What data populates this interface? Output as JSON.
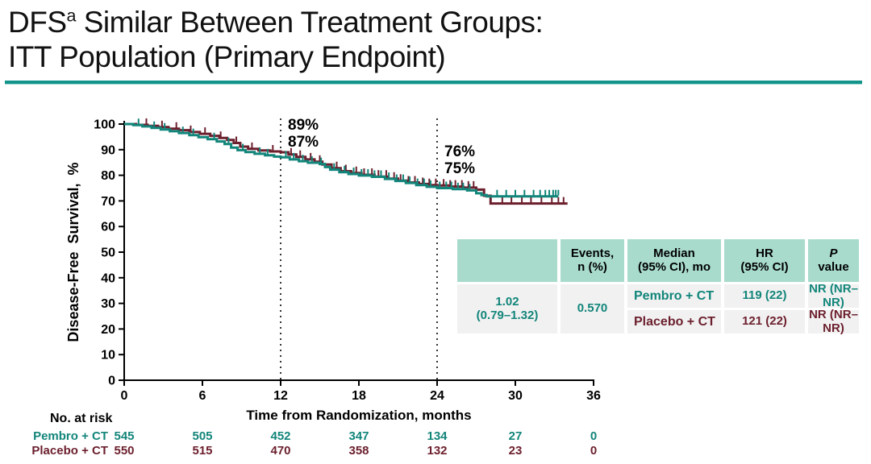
{
  "title": {
    "line1_prefix": "DFS",
    "line1_sup": "a",
    "line1_rest": " Similar Between Treatment Groups:",
    "line2": "ITT Population (Primary Endpoint)"
  },
  "colors": {
    "teal": "#12857A",
    "maroon": "#6C1F2D",
    "header_bg": "#A8DBCC",
    "row_bg": "#F1F1F1",
    "rule": "#12948B",
    "dotted": "#333333",
    "axis": "#000000"
  },
  "summary_table": {
    "headers": {
      "events": "Events,\nn (%)",
      "median": "Median\n(95% CI), mo",
      "hr": "HR\n(95% CI)",
      "p_line1": "P",
      "p_line2": "value"
    },
    "rows": [
      {
        "label": "Pembro + CT",
        "events": "119 (22)",
        "median": "NR (NR–NR)"
      },
      {
        "label": "Placebo + CT",
        "events": "121 (22)",
        "median": "NR (NR–NR)"
      }
    ],
    "hr_line1": "1.02",
    "hr_line2": "(0.79–1.32)",
    "p_value": "0.570"
  },
  "risk_section": {
    "title": "No. at risk"
  },
  "chart_data": {
    "type": "line",
    "subtype": "kaplan-meier",
    "xlabel": "Time from Randomization, months",
    "ylabel": "Disease-Free Survival, %",
    "xlim": [
      0,
      36
    ],
    "ylim": [
      0,
      100
    ],
    "xticks": [
      0,
      6,
      12,
      18,
      24,
      30,
      36
    ],
    "yticks": [
      0,
      10,
      20,
      30,
      40,
      50,
      60,
      70,
      80,
      90,
      100
    ],
    "grid": false,
    "series": [
      {
        "name": "Pembro + CT",
        "color_key": "teal",
        "landmark_12mo": "87%",
        "landmark_24mo": "75%",
        "points": [
          [
            0,
            100
          ],
          [
            0.7,
            99.6
          ],
          [
            1.4,
            99.1
          ],
          [
            2.1,
            98.5
          ],
          [
            2.8,
            97.9
          ],
          [
            3.5,
            97.2
          ],
          [
            4.2,
            96.5
          ],
          [
            5,
            95.7
          ],
          [
            5.7,
            94.9
          ],
          [
            6.4,
            94.1
          ],
          [
            7.1,
            93.2
          ],
          [
            7.7,
            92.2
          ],
          [
            8.2,
            90.8
          ],
          [
            8.7,
            89.8
          ],
          [
            9.3,
            89.1
          ],
          [
            10,
            88.4
          ],
          [
            10.8,
            87.8
          ],
          [
            11.5,
            87.3
          ],
          [
            12,
            87
          ],
          [
            12.7,
            86.2
          ],
          [
            13.4,
            85.5
          ],
          [
            14.1,
            84.9
          ],
          [
            15,
            84.4
          ],
          [
            15.4,
            83.2
          ],
          [
            15.8,
            82.2
          ],
          [
            16.5,
            81.2
          ],
          [
            17.2,
            80.5
          ],
          [
            18,
            79.9
          ],
          [
            19,
            79.4
          ],
          [
            20,
            78.6
          ],
          [
            20.8,
            77.8
          ],
          [
            21.6,
            77
          ],
          [
            22.4,
            76.2
          ],
          [
            23.2,
            75.5
          ],
          [
            24,
            75
          ],
          [
            25.2,
            74.6
          ],
          [
            26.3,
            74.1
          ],
          [
            27,
            73
          ],
          [
            27.4,
            72.3
          ],
          [
            27.8,
            71.8
          ],
          [
            33.3,
            71.8
          ]
        ],
        "censor_months": [
          1.1,
          2.3,
          3.1,
          4.5,
          5.3,
          6.9,
          8.0,
          9.1,
          10.4,
          11.0,
          12.4,
          13.0,
          13.7,
          14.4,
          15.1,
          16.1,
          16.9,
          17.6,
          18.2,
          18.7,
          19.2,
          19.7,
          20.3,
          20.9,
          21.4,
          21.9,
          22.5,
          23.0,
          23.5,
          24.2,
          24.7,
          25.1,
          25.6,
          26.0,
          26.5,
          28.6,
          29.3,
          30.0,
          30.7,
          31.4,
          31.9,
          32.3,
          32.6,
          32.9,
          33.1,
          33.3
        ],
        "risk_counts": [
          545,
          505,
          452,
          347,
          134,
          27,
          0
        ]
      },
      {
        "name": "Placebo + CT",
        "color_key": "maroon",
        "landmark_12mo": "89%",
        "landmark_24mo": "76%",
        "points": [
          [
            0,
            100
          ],
          [
            0.9,
            99.7
          ],
          [
            1.8,
            99.3
          ],
          [
            2.6,
            98.8
          ],
          [
            3.4,
            98.2
          ],
          [
            4.2,
            97.6
          ],
          [
            5,
            96.9
          ],
          [
            5.8,
            96.2
          ],
          [
            6.6,
            95.4
          ],
          [
            7.3,
            94.6
          ],
          [
            7.9,
            93.8
          ],
          [
            8.4,
            92.6
          ],
          [
            8.9,
            91.2
          ],
          [
            9.5,
            90.3
          ],
          [
            10.3,
            89.7
          ],
          [
            11.2,
            89.3
          ],
          [
            12,
            89
          ],
          [
            12.6,
            88.1
          ],
          [
            13.2,
            87.2
          ],
          [
            13.9,
            86.2
          ],
          [
            14.6,
            85.3
          ],
          [
            15.2,
            84.2
          ],
          [
            15.9,
            82.8
          ],
          [
            16.6,
            81.6
          ],
          [
            17.4,
            80.9
          ],
          [
            18.2,
            80.2
          ],
          [
            19.2,
            79.5
          ],
          [
            20.2,
            78.7
          ],
          [
            21,
            77.9
          ],
          [
            21.8,
            77.2
          ],
          [
            22.6,
            76.6
          ],
          [
            23.4,
            76.2
          ],
          [
            24,
            76
          ],
          [
            25,
            75.6
          ],
          [
            26,
            75.2
          ],
          [
            27,
            74.4
          ],
          [
            27.6,
            72
          ],
          [
            28.1,
            69
          ],
          [
            34,
            69
          ]
        ],
        "censor_months": [
          1.7,
          2.9,
          4.0,
          5.1,
          6.2,
          7.4,
          8.6,
          9.8,
          11.4,
          12.8,
          13.5,
          14.3,
          15.0,
          16.3,
          17.0,
          17.8,
          18.4,
          19.0,
          19.5,
          20.1,
          20.7,
          21.2,
          21.8,
          22.3,
          22.9,
          23.4,
          23.9,
          24.5,
          25.0,
          25.4,
          25.9,
          26.4,
          26.8,
          29.0,
          29.7,
          30.5,
          31.2,
          32.0,
          32.8,
          33.3,
          33.7
        ],
        "risk_counts": [
          550,
          515,
          470,
          358,
          132,
          23,
          0
        ]
      }
    ],
    "reference_lines": [
      {
        "month": 12,
        "label_baseline_y": 161,
        "labels": [
          {
            "text": "89%",
            "color_key": "maroon"
          },
          {
            "text": "87%",
            "color_key": "teal"
          }
        ]
      },
      {
        "month": 24,
        "label_baseline_y": 194,
        "labels": [
          {
            "text": "76%",
            "color_key": "maroon"
          },
          {
            "text": "75%",
            "color_key": "teal"
          }
        ]
      }
    ]
  }
}
